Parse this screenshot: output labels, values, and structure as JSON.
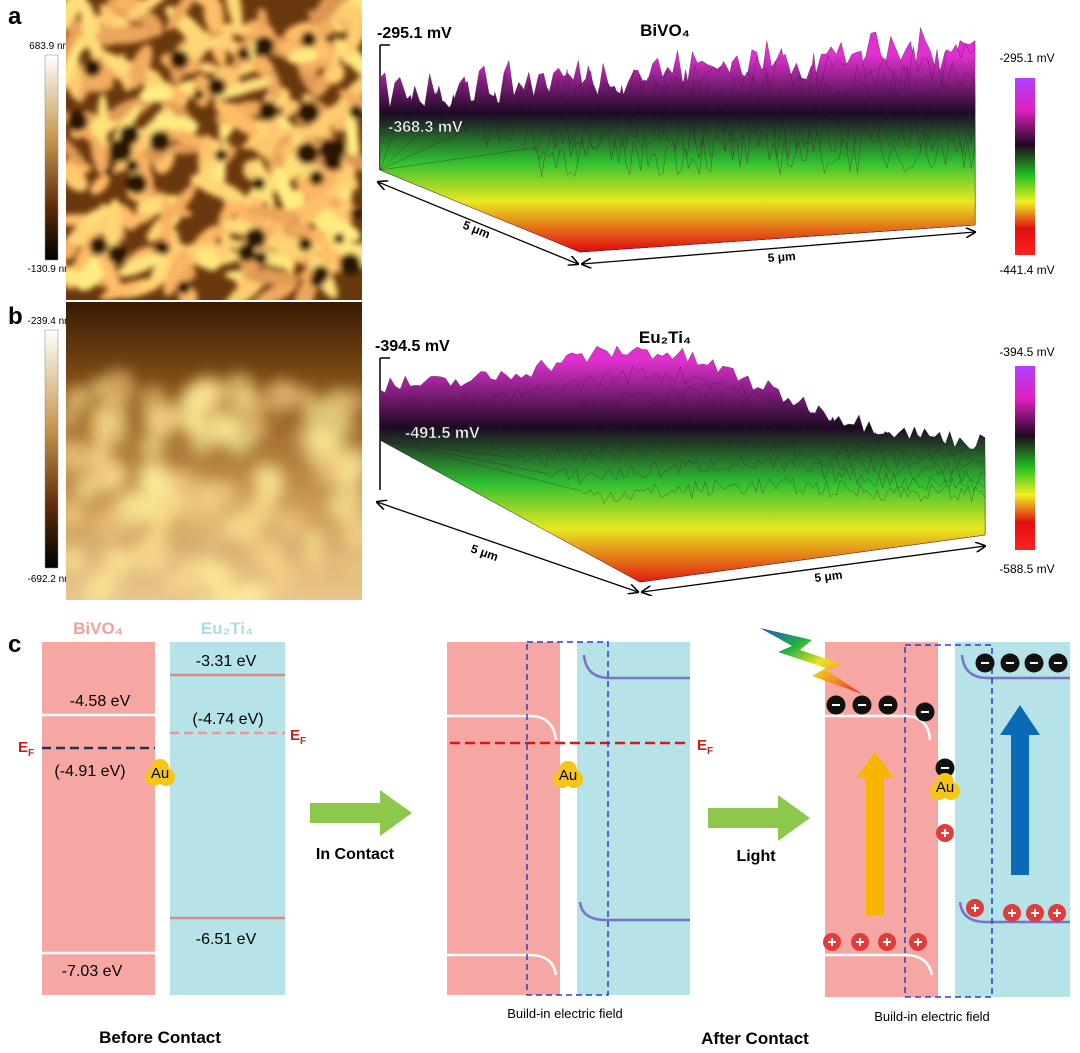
{
  "panel_a": {
    "label": "a",
    "afm_scale": {
      "max": "683.9 nm",
      "min": "-130.9 nm"
    },
    "kpfm": {
      "title": "BiVO₄",
      "z_top": "-295.1 mV",
      "z_mid": "-368.3 mV",
      "axis_left": "5 μm",
      "axis_right": "5 μm",
      "scale_max": "-295.1 mV",
      "scale_min": "-441.4 mV"
    }
  },
  "panel_b": {
    "label": "b",
    "afm_scale": {
      "max": "-239.4 nm",
      "min": "-692.2 nm"
    },
    "kpfm": {
      "title": "Eu₂Ti₄",
      "z_top": "-394.5 mV",
      "z_mid": "-491.5 mV",
      "axis_left": "5 μm",
      "axis_right": "5 μm",
      "scale_max": "-394.5 mV",
      "scale_min": "-588.5 mV"
    }
  },
  "panel_c": {
    "label": "c",
    "before": {
      "material_left": "BiVO₄",
      "material_right": "Eu₂Ti₄",
      "left_cb": "-4.58 eV",
      "left_vb": "-7.03 eV",
      "left_ef": "(-4.91 eV)",
      "right_cb": "-3.31 eV",
      "right_vb": "-6.51 eV",
      "right_ef": "(-4.74 eV)",
      "ef_left": {
        "main": "E",
        "sub": "F"
      },
      "ef_right": {
        "main": "E",
        "sub": "F"
      },
      "au": "Au",
      "caption": "Before Contact"
    },
    "step1": "In Contact",
    "contact": {
      "ef": {
        "main": "E",
        "sub": "F"
      },
      "au": "Au",
      "field": "Build-in electric field"
    },
    "step2": "Light",
    "light": {
      "au": "Au",
      "field": "Build-in electric field"
    },
    "caption_after": "After Contact"
  }
}
